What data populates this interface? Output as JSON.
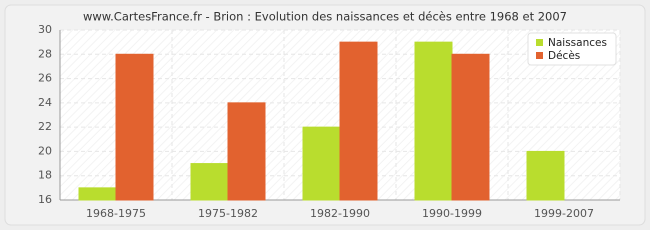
{
  "chart_data": {
    "type": "bar",
    "title": "www.CartesFrance.fr - Brion : Evolution des naissances et décès entre 1968 et 2007",
    "categories": [
      "1968-1975",
      "1975-1982",
      "1982-1990",
      "1990-1999",
      "1999-2007"
    ],
    "series": [
      {
        "name": "Naissances",
        "color": "#b9dd2e",
        "values": [
          17,
          19,
          22,
          29,
          20
        ]
      },
      {
        "name": "Décès",
        "color": "#e2622f",
        "values": [
          28,
          24,
          29,
          28,
          16
        ]
      }
    ],
    "ylim": [
      16,
      30
    ],
    "yticks": [
      16,
      18,
      20,
      22,
      24,
      26,
      28,
      30
    ],
    "grid": true,
    "legend": "top-right"
  }
}
